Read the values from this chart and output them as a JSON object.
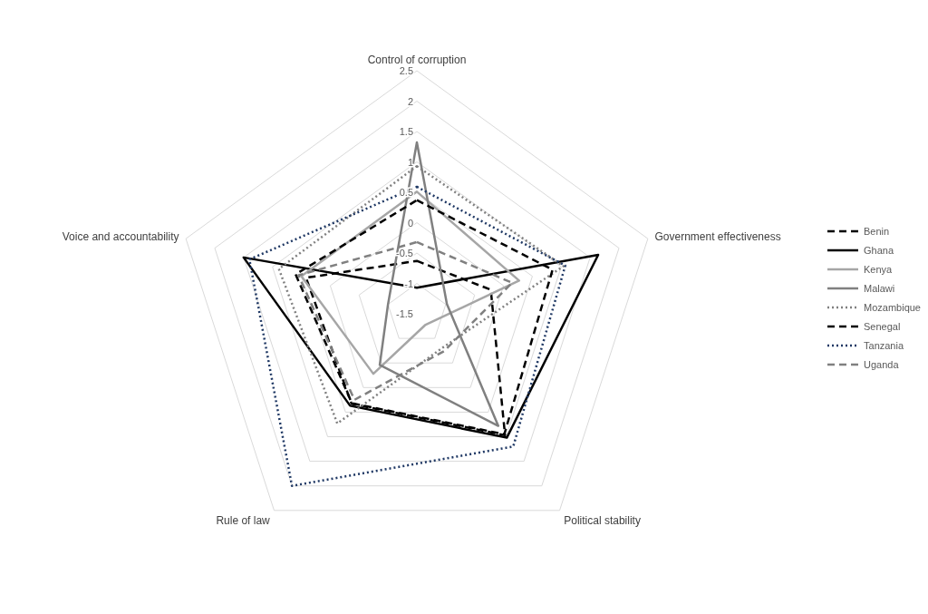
{
  "chart_data": {
    "type": "radar",
    "categories": [
      "Control of corruption",
      "Government effectiveness",
      "Political stability",
      "Rule of law",
      "Voice and accountability"
    ],
    "ylim": [
      -1.5,
      2.5
    ],
    "yticks": [
      -1.5,
      -1,
      -0.5,
      0,
      0.5,
      1,
      1.5,
      2,
      2.5
    ],
    "grid": true,
    "legend": "right",
    "marker": "none",
    "series": [
      {
        "name": "Benin",
        "color": "#000000",
        "line_style": "dashed",
        "values": [
          -0.63,
          -0.22,
          0.97,
          0.33,
          0.42
        ]
      },
      {
        "name": "Ghana",
        "color": "#000000",
        "line_style": "solid",
        "values": [
          -1.07,
          1.64,
          1.02,
          0.37,
          1.5
        ]
      },
      {
        "name": "Kenya",
        "color": "#a6a6a6",
        "line_style": "solid",
        "values": [
          0.51,
          0.27,
          -1.27,
          -0.28,
          0.5
        ]
      },
      {
        "name": "Malawi",
        "color": "#808080",
        "line_style": "solid",
        "values": [
          1.32,
          -0.98,
          0.78,
          -0.46,
          -1.0
        ]
      },
      {
        "name": "Mozambique",
        "color": "#808080",
        "line_style": "dotted",
        "values": [
          0.93,
          1.04,
          -0.8,
          0.73,
          0.89
        ]
      },
      {
        "name": "Senegal",
        "color": "#000000",
        "line_style": "dashed",
        "values": [
          0.37,
          0.85,
          0.95,
          0.32,
          0.6
        ]
      },
      {
        "name": "Tanzania",
        "color": "#1f3864",
        "line_style": "dotted",
        "values": [
          0.59,
          1.07,
          1.2,
          2.0,
          1.4
        ]
      },
      {
        "name": "Uganda",
        "color": "#808080",
        "line_style": "dashed",
        "values": [
          -0.32,
          0.15,
          -0.74,
          0.25,
          0.55
        ]
      }
    ]
  }
}
